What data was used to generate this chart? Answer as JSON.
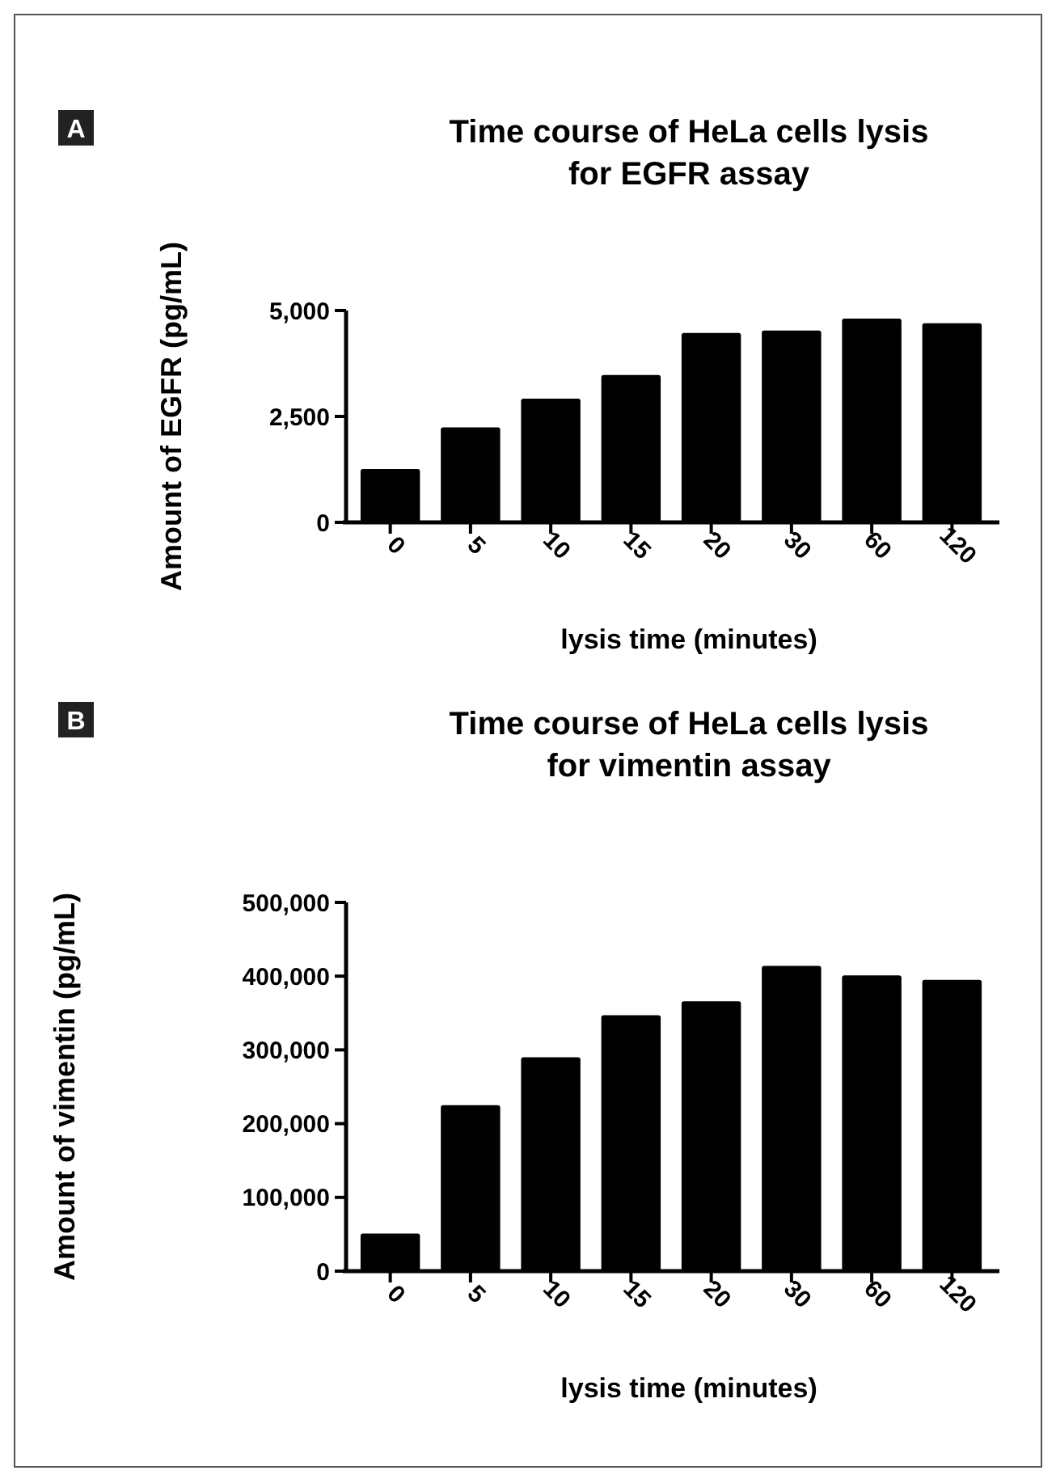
{
  "chart_data": [
    {
      "type": "bar",
      "title": "Time course of HeLa cells lysis\nfor EGFR assay",
      "xlabel": "lysis time (minutes)",
      "ylabel": "Amount of EGFR (pg/mL)",
      "annotations": [
        "A"
      ],
      "categories": [
        "0",
        "5",
        "10",
        "15",
        "20",
        "30",
        "60",
        "120"
      ],
      "values": [
        1260,
        2240,
        2920,
        3480,
        4470,
        4530,
        4810,
        4700
      ],
      "color": "#000000",
      "ylim": [
        0,
        5000
      ],
      "yticks": [
        {
          "value": 0,
          "label": "0"
        },
        {
          "value": 2500,
          "label": "2,500"
        },
        {
          "value": 5000,
          "label": "5,000"
        }
      ],
      "grid": false
    },
    {
      "type": "bar",
      "title": "Time course of HeLa cells lysis\nfor vimentin assay",
      "xlabel": "lysis time (minutes)",
      "ylabel": "Amount of vimentin (pg/mL)",
      "annotations": [
        "B"
      ],
      "categories": [
        "0",
        "5",
        "10",
        "15",
        "20",
        "30",
        "60",
        "120"
      ],
      "values": [
        51000,
        225000,
        290000,
        347000,
        366000,
        414000,
        401000,
        395000
      ],
      "color": "#000000",
      "ylim": [
        0,
        500000
      ],
      "yticks": [
        {
          "value": 0,
          "label": "0"
        },
        {
          "value": 100000,
          "label": "100,000"
        },
        {
          "value": 200000,
          "label": "200,000"
        },
        {
          "value": 300000,
          "label": "300,000"
        },
        {
          "value": 400000,
          "label": "400,000"
        },
        {
          "value": 500000,
          "label": "500,000"
        }
      ],
      "grid": false
    }
  ]
}
